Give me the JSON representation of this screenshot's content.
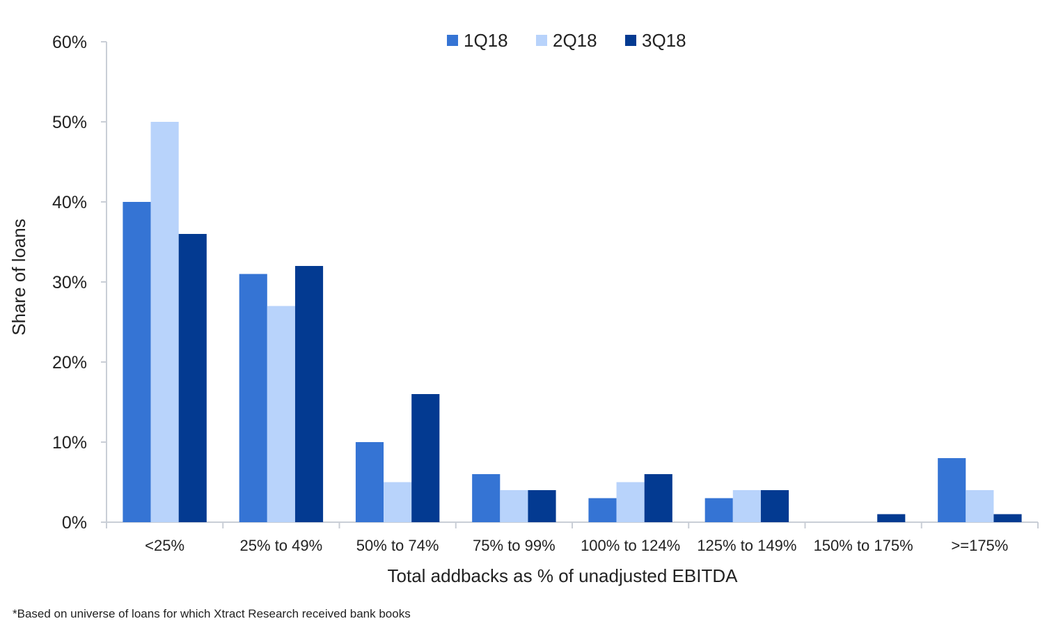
{
  "footnote": "*Based on universe of loans for which Xtract Research received bank books",
  "chart_data": {
    "type": "bar",
    "title": "",
    "xlabel": "Total addbacks as % of unadjusted EBITDA",
    "ylabel": "Share of loans",
    "ylim": [
      0,
      60
    ],
    "yticks": [
      "0%",
      "10%",
      "20%",
      "30%",
      "40%",
      "50%",
      "60%"
    ],
    "grid": false,
    "legend_position": "top-center",
    "categories": [
      "<25%",
      "25% to 49%",
      "50% to 74%",
      "75% to 99%",
      "100% to 124%",
      "125% to 149%",
      "150% to 175%",
      ">=175%"
    ],
    "series": [
      {
        "name": "1Q18",
        "color": "#3574d4",
        "values": [
          40,
          31,
          10,
          6,
          3,
          3,
          0,
          8
        ]
      },
      {
        "name": "2Q18",
        "color": "#b8d3fb",
        "values": [
          50,
          27,
          5,
          4,
          5,
          4,
          0,
          4
        ]
      },
      {
        "name": "3Q18",
        "color": "#033a91",
        "values": [
          36,
          32,
          16,
          4,
          6,
          4,
          1,
          1
        ]
      }
    ]
  }
}
